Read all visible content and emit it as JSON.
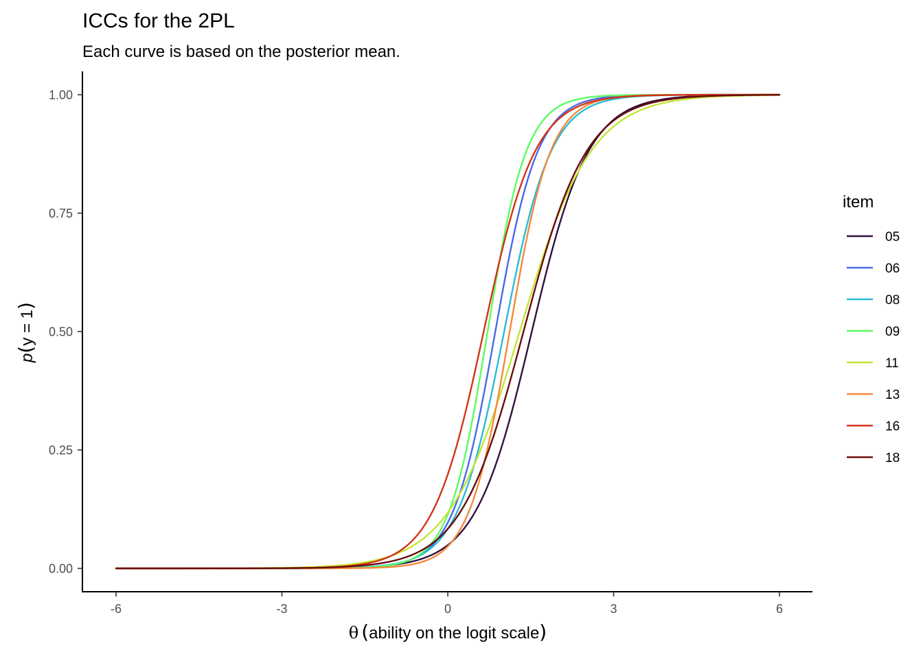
{
  "chart_data": {
    "type": "line",
    "title": "ICCs for the 2PL",
    "subtitle": "Each curve is based on the posterior mean.",
    "xlabel": {
      "symbol": "θ",
      "text": "ability on the logit scale"
    },
    "ylabel": {
      "p": "p",
      "inner": "y = 1"
    },
    "xlim": [
      -6,
      6
    ],
    "ylim": [
      0,
      1
    ],
    "x_ticks": [
      -6,
      -3,
      0,
      3,
      6
    ],
    "x_tick_labels": [
      "-6",
      "-3",
      "0",
      "3",
      "6"
    ],
    "y_ticks": [
      0,
      0.25,
      0.5,
      0.75,
      1
    ],
    "y_tick_labels": [
      "0.00",
      "0.25",
      "0.50",
      "0.75",
      "1.00"
    ],
    "grid": false,
    "legend": {
      "title": "item",
      "position": "right"
    },
    "series": [
      {
        "name": "05",
        "color": "#30123b",
        "discrimination": 1.95,
        "difficulty": 1.52
      },
      {
        "name": "06",
        "color": "#4669e8",
        "discrimination": 2.6,
        "difficulty": 0.86
      },
      {
        "name": "08",
        "color": "#28bbd6",
        "discrimination": 2.35,
        "difficulty": 1.02
      },
      {
        "name": "09",
        "color": "#5bfc5f",
        "discrimination": 2.85,
        "difficulty": 0.72
      },
      {
        "name": "11",
        "color": "#c4e534",
        "discrimination": 1.55,
        "difficulty": 1.3
      },
      {
        "name": "13",
        "color": "#f5893c",
        "discrimination": 2.7,
        "difficulty": 1.12
      },
      {
        "name": "16",
        "color": "#d33317",
        "discrimination": 2.15,
        "difficulty": 0.65
      },
      {
        "name": "18",
        "color": "#6a0b0b",
        "discrimination": 1.75,
        "difficulty": 1.37
      }
    ]
  }
}
